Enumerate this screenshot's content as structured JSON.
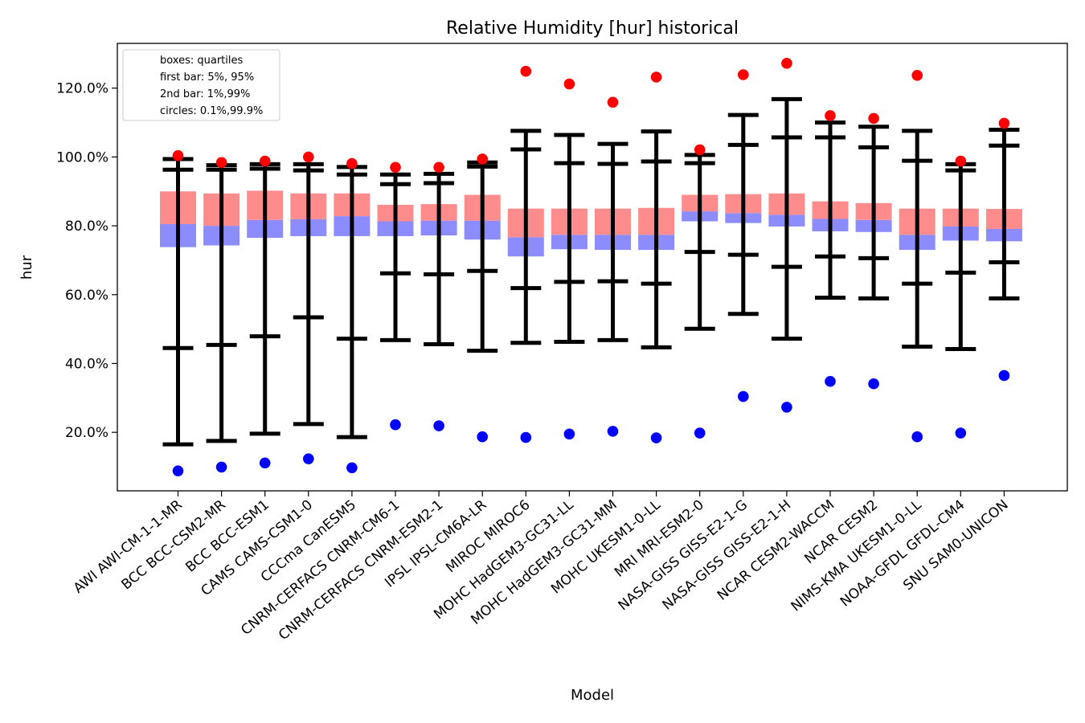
{
  "chart_data": {
    "type": "box",
    "title": "Relative Humidity [hur] historical",
    "xlabel": "Model",
    "ylabel": "hur",
    "ylim": [
      3,
      133
    ],
    "yticks": [
      20,
      40,
      60,
      80,
      100,
      120
    ],
    "ytick_labels": [
      "20.0%",
      "40.0%",
      "60.0%",
      "80.0%",
      "100.0%",
      "120.0%"
    ],
    "legend": {
      "placement": "top-left",
      "entries": [
        "boxes: quartiles",
        "first bar: 5%, 95%",
        "2nd bar: 1%,99%",
        "circles: 0.1%,99.9%"
      ]
    },
    "colors": {
      "box_upper": "#ff8c8c",
      "box_lower": "#8c8cff",
      "whisker": "#000000",
      "high_circle": "#ff0000",
      "low_circle": "#0000ff"
    },
    "models": [
      {
        "name": "AWI AWI-CM-1-1-MR",
        "p0_1": 8.8,
        "p1": 16.5,
        "p5": 44.5,
        "q1": 73.8,
        "median": 80.5,
        "q3": 90.0,
        "p95": 96.3,
        "p99": 99.4,
        "p99_9": 100.4
      },
      {
        "name": "BCC BCC-CSM2-MR",
        "p0_1": 9.9,
        "p1": 17.5,
        "p5": 45.4,
        "q1": 74.3,
        "median": 80.0,
        "q3": 89.4,
        "p95": 96.3,
        "p99": 97.6,
        "p99_9": 98.4
      },
      {
        "name": "BCC BCC-ESM1",
        "p0_1": 11.1,
        "p1": 19.6,
        "p5": 47.9,
        "q1": 76.5,
        "median": 81.7,
        "q3": 90.2,
        "p95": 96.6,
        "p99": 97.9,
        "p99_9": 98.8
      },
      {
        "name": "CAMS CAMS-CSM1-0",
        "p0_1": 12.3,
        "p1": 22.4,
        "p5": 53.4,
        "q1": 77.0,
        "median": 81.9,
        "q3": 89.4,
        "p95": 96.1,
        "p99": 97.9,
        "p99_9": 100.0
      },
      {
        "name": "CCCma CanESM5",
        "p0_1": 9.7,
        "p1": 18.6,
        "p5": 47.2,
        "q1": 77.0,
        "median": 82.8,
        "q3": 89.4,
        "p95": 94.9,
        "p99": 97.1,
        "p99_9": 98.1
      },
      {
        "name": "CNRM-CERFACS CNRM-CM6-1",
        "p0_1": 22.2,
        "p1": 46.8,
        "p5": 66.2,
        "q1": 77.0,
        "median": 81.3,
        "q3": 86.1,
        "p95": 92.1,
        "p99": 94.9,
        "p99_9": 97.0
      },
      {
        "name": "CNRM-CERFACS CNRM-ESM2-1",
        "p0_1": 21.9,
        "p1": 45.6,
        "p5": 65.9,
        "q1": 77.2,
        "median": 81.5,
        "q3": 86.3,
        "p95": 92.4,
        "p99": 95.1,
        "p99_9": 97.0
      },
      {
        "name": "IPSL IPSL-CM6A-LR",
        "p0_1": 18.7,
        "p1": 43.7,
        "p5": 66.9,
        "q1": 76.0,
        "median": 81.5,
        "q3": 89.0,
        "p95": 97.2,
        "p99": 98.4,
        "p99_9": 99.4
      },
      {
        "name": "MIROC MIROC6",
        "p0_1": 18.5,
        "p1": 46.0,
        "p5": 61.9,
        "q1": 71.1,
        "median": 76.7,
        "q3": 85.0,
        "p95": 102.2,
        "p99": 107.6,
        "p99_9": 124.9
      },
      {
        "name": "MOHC HadGEM3-GC31-LL",
        "p0_1": 19.5,
        "p1": 46.3,
        "p5": 63.7,
        "q1": 73.2,
        "median": 77.4,
        "q3": 85.0,
        "p95": 98.2,
        "p99": 106.4,
        "p99_9": 121.2
      },
      {
        "name": "MOHC HadGEM3-GC31-MM",
        "p0_1": 20.3,
        "p1": 46.8,
        "p5": 63.9,
        "q1": 73.0,
        "median": 77.4,
        "q3": 85.0,
        "p95": 98.0,
        "p99": 103.8,
        "p99_9": 115.9
      },
      {
        "name": "MOHC UKESM1-0-LL",
        "p0_1": 18.4,
        "p1": 44.7,
        "p5": 63.2,
        "q1": 73.0,
        "median": 77.4,
        "q3": 85.2,
        "p95": 98.7,
        "p99": 107.4,
        "p99_9": 123.2
      },
      {
        "name": "MRI MRI-ESM2-0",
        "p0_1": 19.8,
        "p1": 50.1,
        "p5": 72.4,
        "q1": 81.3,
        "median": 84.2,
        "q3": 89.0,
        "p95": 98.2,
        "p99": 100.6,
        "p99_9": 102.1
      },
      {
        "name": "NASA-GISS GISS-E2-1-G",
        "p0_1": 30.4,
        "p1": 54.4,
        "p5": 71.6,
        "q1": 80.8,
        "median": 83.7,
        "q3": 89.2,
        "p95": 103.5,
        "p99": 112.2,
        "p99_9": 123.9
      },
      {
        "name": "NASA-GISS GISS-E2-1-H",
        "p0_1": 27.3,
        "p1": 47.2,
        "p5": 68.1,
        "q1": 79.8,
        "median": 83.2,
        "q3": 89.4,
        "p95": 105.7,
        "p99": 116.8,
        "p99_9": 127.2
      },
      {
        "name": "NCAR CESM2-WACCM",
        "p0_1": 34.8,
        "p1": 59.1,
        "p5": 71.1,
        "q1": 78.4,
        "median": 82.0,
        "q3": 87.1,
        "p95": 105.7,
        "p99": 110.0,
        "p99_9": 112.0
      },
      {
        "name": "NCAR CESM2",
        "p0_1": 34.1,
        "p1": 58.9,
        "p5": 70.6,
        "q1": 78.2,
        "median": 81.7,
        "q3": 86.6,
        "p95": 102.8,
        "p99": 108.8,
        "p99_9": 111.2
      },
      {
        "name": "NIMS-KMA UKESM1-0-LL",
        "p0_1": 18.7,
        "p1": 44.9,
        "p5": 63.2,
        "q1": 73.0,
        "median": 77.4,
        "q3": 85.0,
        "p95": 98.9,
        "p99": 107.6,
        "p99_9": 123.7
      },
      {
        "name": "NOAA-GFDL GFDL-CM4",
        "p0_1": 19.8,
        "p1": 44.2,
        "p5": 66.4,
        "q1": 75.7,
        "median": 79.8,
        "q3": 85.0,
        "p95": 96.1,
        "p99": 97.9,
        "p99_9": 98.8
      },
      {
        "name": "SNU SAM0-UNICON",
        "p0_1": 36.5,
        "p1": 58.9,
        "p5": 69.4,
        "q1": 75.5,
        "median": 79.1,
        "q3": 84.9,
        "p95": 103.3,
        "p99": 107.9,
        "p99_9": 109.8
      }
    ]
  }
}
